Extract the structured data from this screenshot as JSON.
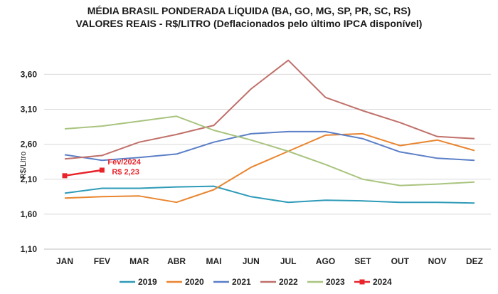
{
  "header": {
    "title_line1": "MÉDIA BRASIL PONDERADA LÍQUIDA (BA, GO, MG, SP, PR, SC, RS)",
    "title_line2": "VALORES REAIS - R$/LITRO (Deflacionados  pelo último IPCA disponível)"
  },
  "chart_data": {
    "type": "line",
    "title": "MÉDIA BRASIL PONDERADA LÍQUIDA (BA, GO, MG, SP, PR, SC, RS)",
    "subtitle": "VALORES REAIS - R$/LITRO (Deflacionados  pelo último IPCA disponível)",
    "xlabel": "",
    "ylabel": "R$/Litro",
    "categories": [
      "JAN",
      "FEV",
      "MAR",
      "ABR",
      "MAI",
      "JUN",
      "JUL",
      "AGO",
      "SET",
      "OUT",
      "NOV",
      "DEZ"
    ],
    "ylim": [
      1.1,
      3.95
    ],
    "yticks": [
      1.1,
      1.6,
      2.1,
      2.6,
      3.1,
      3.6
    ],
    "ytick_labels": [
      "1,10",
      "1,60",
      "2,10",
      "2,60",
      "3,10",
      "3,60"
    ],
    "grid": true,
    "legend": "bottom",
    "series": [
      {
        "name": "2019",
        "color": "#2e9bb8",
        "values": [
          1.9,
          1.97,
          1.97,
          1.99,
          2.0,
          1.85,
          1.77,
          1.8,
          1.79,
          1.77,
          1.77,
          1.76
        ]
      },
      {
        "name": "2020",
        "color": "#e9852f",
        "values": [
          1.83,
          1.85,
          1.86,
          1.77,
          1.95,
          2.27,
          2.5,
          2.73,
          2.75,
          2.58,
          2.66,
          2.51
        ]
      },
      {
        "name": "2021",
        "color": "#5b7fc7",
        "values": [
          2.45,
          2.37,
          2.41,
          2.46,
          2.63,
          2.75,
          2.78,
          2.78,
          2.68,
          2.49,
          2.4,
          2.37
        ]
      },
      {
        "name": "2022",
        "color": "#c0706a",
        "values": [
          2.39,
          2.44,
          2.63,
          2.74,
          2.87,
          3.39,
          3.8,
          3.27,
          3.08,
          2.91,
          2.71,
          2.68
        ]
      },
      {
        "name": "2023",
        "color": "#a9c47f",
        "values": [
          2.82,
          2.86,
          2.93,
          3.0,
          2.8,
          2.66,
          2.5,
          2.31,
          2.1,
          2.01,
          2.03,
          2.06
        ]
      },
      {
        "name": "2024",
        "color": "#e8242a",
        "values": [
          2.15,
          2.23,
          null,
          null,
          null,
          null,
          null,
          null,
          null,
          null,
          null,
          null
        ]
      }
    ],
    "annotation": {
      "series": "2024",
      "month": "FEV",
      "line1": "Fev/2024",
      "line2": "R$ 2,23",
      "color": "#e8242a"
    }
  }
}
